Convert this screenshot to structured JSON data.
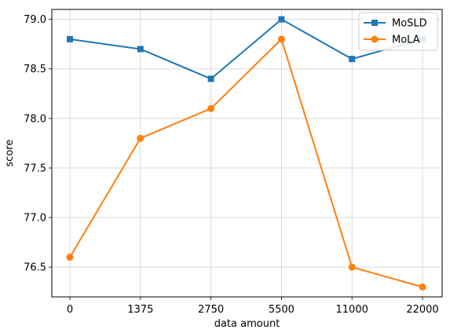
{
  "chart_data": {
    "type": "line",
    "title": "",
    "xlabel": "data amount",
    "ylabel": "score",
    "categories": [
      "0",
      "1375",
      "2750",
      "5500",
      "11000",
      "22000"
    ],
    "ylim": [
      76.2,
      79.1
    ],
    "yticks": [
      76.5,
      77.0,
      77.5,
      78.0,
      78.5,
      79.0
    ],
    "ytick_labels": [
      "76.5",
      "77.0",
      "77.5",
      "78.0",
      "78.5",
      "79.0"
    ],
    "grid": true,
    "legend_position": "top-right",
    "series": [
      {
        "name": "MoSLD",
        "color": "#1f77b4",
        "marker": "square",
        "values": [
          78.8,
          78.7,
          78.4,
          79.0,
          78.6,
          78.8
        ]
      },
      {
        "name": "MoLA",
        "color": "#ff7f0e",
        "marker": "circle",
        "values": [
          76.6,
          77.8,
          78.1,
          78.8,
          76.5,
          76.3
        ]
      }
    ]
  }
}
